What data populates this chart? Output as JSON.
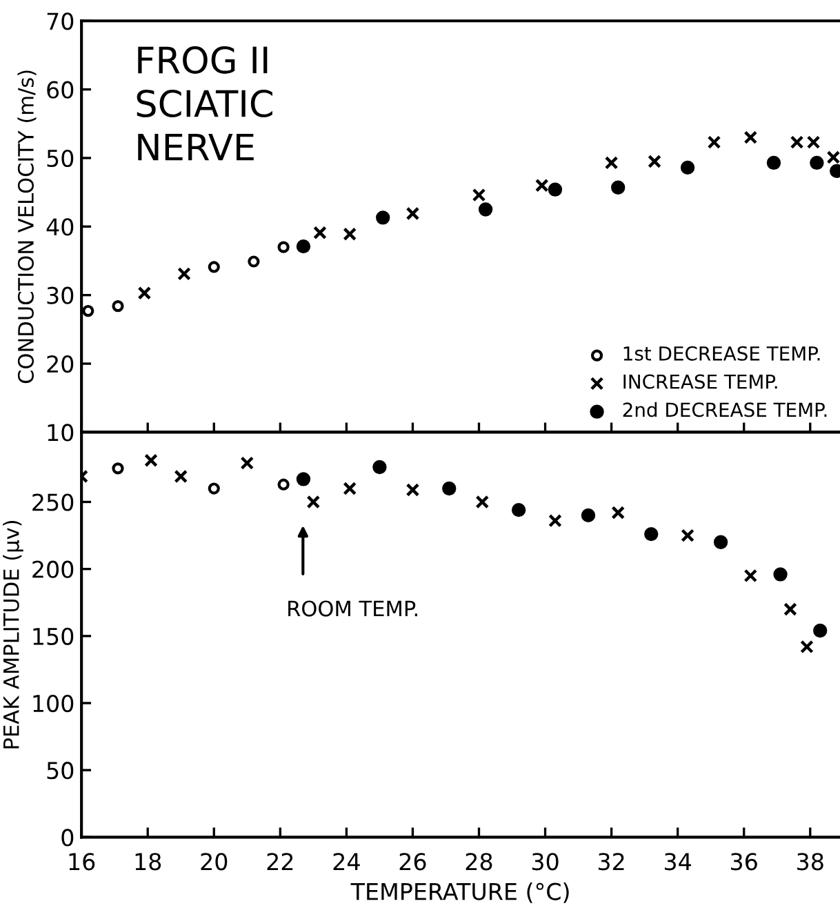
{
  "chart_data": [
    {
      "type": "scatter",
      "title": "FROG II\nSCIATIC\nNERVE",
      "ylabel": "CONDUCTION VELOCITY (m/s)",
      "xlim": [
        16,
        38.9
      ],
      "xticks": [
        16,
        18,
        20,
        22,
        24,
        26,
        28,
        30,
        32,
        34,
        36,
        38
      ],
      "ylim": [
        10,
        70
      ],
      "yticks": [
        10,
        20,
        30,
        40,
        50,
        60,
        70
      ],
      "tick_labels": "y",
      "legend": "bottom right",
      "grid": false,
      "series": [
        {
          "name": "1st DECREASE TEMP.",
          "color": "#000000",
          "marker": "circle",
          "x": [
            16.2,
            17.1,
            20.0,
            21.2,
            22.1
          ],
          "values": [
            27.7,
            28.4,
            34.1,
            34.9,
            37.0
          ]
        },
        {
          "name": "INCREASE TEMP.",
          "color": "#000000",
          "marker": "cross",
          "x": [
            17.9,
            19.1,
            23.2,
            24.1,
            26.0,
            28.0,
            29.9,
            32.0,
            33.3,
            35.1,
            36.2,
            37.6,
            38.1,
            38.7
          ],
          "values": [
            30.3,
            33.1,
            39.1,
            38.9,
            41.9,
            44.6,
            46.0,
            49.3,
            49.5,
            52.3,
            53.0,
            52.3,
            52.3,
            50.1
          ]
        },
        {
          "name": "2nd DECREASE TEMP.",
          "color": "#000000",
          "marker": "filled_circle",
          "x": [
            22.7,
            25.1,
            28.2,
            30.3,
            32.2,
            34.3,
            36.9,
            38.2,
            38.8
          ],
          "values": [
            37.1,
            41.3,
            42.5,
            45.4,
            45.7,
            48.6,
            49.3,
            49.3,
            48.1
          ]
        }
      ]
    },
    {
      "type": "scatter",
      "xlabel": "TEMPERATURE (°C)",
      "ylabel": "PEAK AMPLITUDE (μv)",
      "xlim": [
        16,
        38.9
      ],
      "xticks": [
        16,
        18,
        20,
        22,
        24,
        26,
        28,
        30,
        32,
        34,
        36,
        38
      ],
      "ylim": [
        0,
        302
      ],
      "yticks": [
        0,
        50,
        100,
        150,
        200,
        250
      ],
      "grid": false,
      "annotations": [
        "ROOM TEMP."
      ],
      "series": [
        {
          "color": "#000000",
          "marker": "circle",
          "x": [
            17.1,
            20.0,
            22.1
          ],
          "values": [
            275,
            260,
            263
          ]
        },
        {
          "color": "#000000",
          "marker": "cross",
          "x": [
            16.0,
            18.1,
            19.0,
            21.0,
            23.0,
            24.1,
            26.0,
            28.1,
            30.3,
            32.2,
            34.3,
            36.2,
            37.4,
            37.9
          ],
          "values": [
            269,
            281,
            269,
            279,
            250,
            260,
            259,
            250,
            236,
            242,
            225,
            195,
            170,
            142
          ]
        },
        {
          "color": "#000000",
          "marker": "filled_circle",
          "x": [
            22.7,
            25.0,
            27.1,
            29.2,
            31.3,
            33.2,
            35.3,
            37.1,
            38.3
          ],
          "values": [
            267,
            276,
            260,
            244,
            240,
            226,
            220,
            196,
            154
          ]
        }
      ]
    }
  ]
}
